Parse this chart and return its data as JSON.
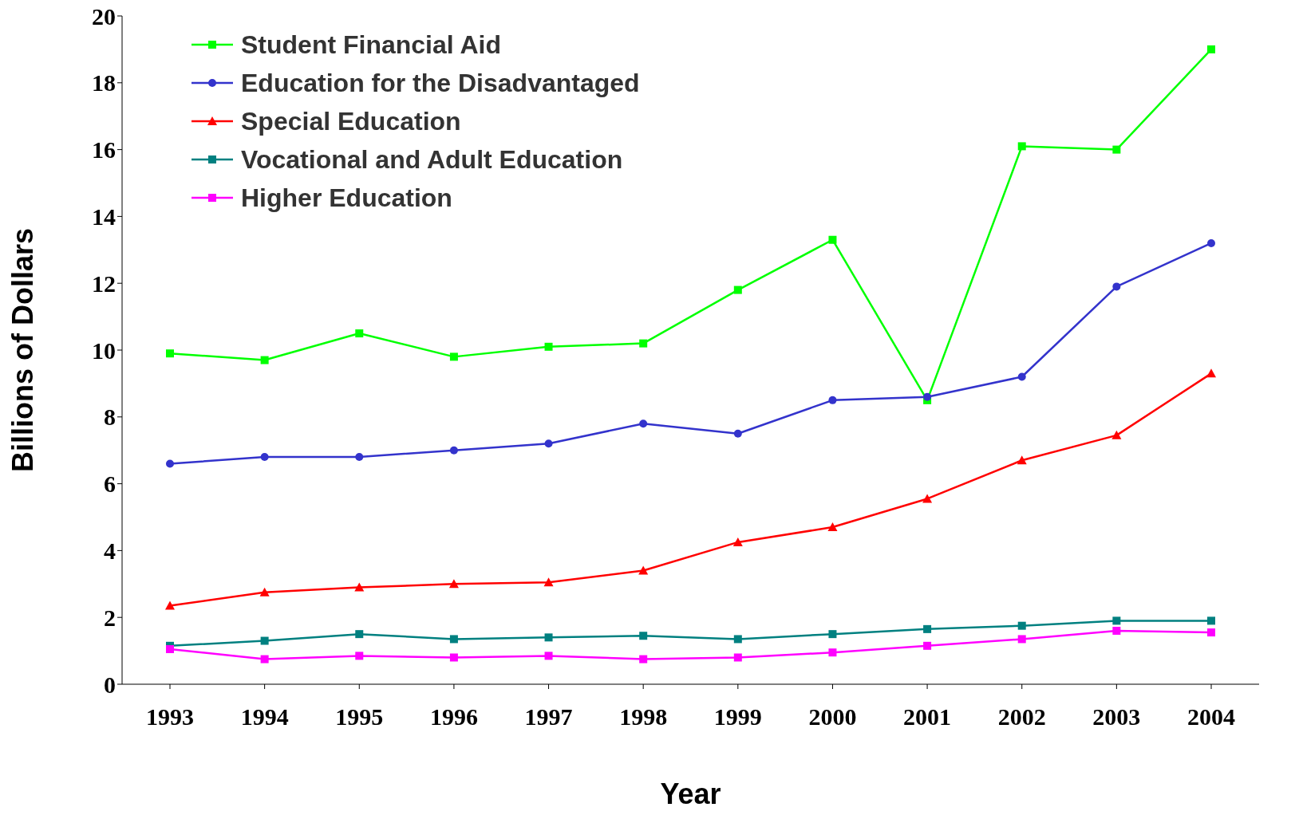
{
  "chart_data": {
    "type": "line",
    "xlabel": "Year",
    "ylabel": "Billions of Dollars",
    "categories": [
      "1993",
      "1994",
      "1995",
      "1996",
      "1997",
      "1998",
      "1999",
      "2000",
      "2001",
      "2002",
      "2003",
      "2004"
    ],
    "series": [
      {
        "name": "Student Financial Aid",
        "color": "#00ff00",
        "marker": "square",
        "values": [
          9.9,
          9.7,
          10.5,
          9.8,
          10.1,
          10.2,
          11.8,
          13.3,
          8.5,
          16.1,
          16.0,
          19.0
        ]
      },
      {
        "name": "Education for the Disadvantaged",
        "color": "#3333cc",
        "marker": "circle",
        "values": [
          6.6,
          6.8,
          6.8,
          7.0,
          7.2,
          7.8,
          7.5,
          8.5,
          8.6,
          9.2,
          11.9,
          13.2
        ]
      },
      {
        "name": "Special Education",
        "color": "#ff0000",
        "marker": "triangle",
        "values": [
          2.35,
          2.75,
          2.9,
          3.0,
          3.05,
          3.4,
          4.25,
          4.7,
          5.55,
          6.7,
          7.45,
          9.3
        ]
      },
      {
        "name": "Vocational and Adult Education",
        "color": "#008080",
        "marker": "square",
        "values": [
          1.15,
          1.3,
          1.5,
          1.35,
          1.4,
          1.45,
          1.35,
          1.5,
          1.65,
          1.75,
          1.9,
          1.9
        ]
      },
      {
        "name": "Higher Education",
        "color": "#ff00ff",
        "marker": "square",
        "values": [
          1.05,
          0.75,
          0.85,
          0.8,
          0.85,
          0.75,
          0.8,
          0.95,
          1.15,
          1.35,
          1.6,
          1.55
        ]
      }
    ],
    "ylim": [
      0,
      20
    ],
    "yticks": [
      0,
      2,
      4,
      6,
      8,
      10,
      12,
      14,
      16,
      18,
      20
    ],
    "grid": false,
    "legend": "top left",
    "line_style": "solid"
  }
}
